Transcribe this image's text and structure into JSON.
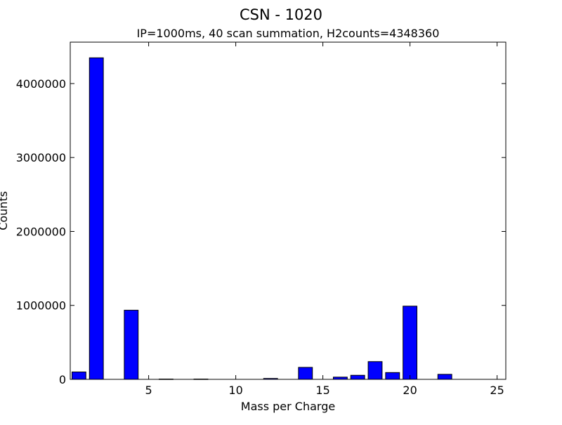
{
  "chart_data": {
    "type": "bar",
    "title": "CSN - 1020",
    "subtitle": "IP=1000ms, 40 scan summation, H2counts=4348360",
    "xlabel": "Mass per Charge",
    "ylabel": "Counts",
    "xlim": [
      0.5,
      25.5
    ],
    "ylim": [
      0,
      4560000
    ],
    "xticks": [
      5,
      10,
      15,
      20,
      25
    ],
    "yticks": [
      0,
      1000000,
      2000000,
      3000000,
      4000000
    ],
    "bar_color": "#0000ff",
    "grid": false,
    "x": [
      1,
      2,
      4,
      6,
      8,
      12,
      14,
      16,
      17,
      18,
      19,
      20,
      22
    ],
    "values": [
      100000,
      4348360,
      935000,
      4000,
      4000,
      12000,
      162000,
      30000,
      55000,
      240000,
      92000,
      990000,
      68000
    ]
  }
}
